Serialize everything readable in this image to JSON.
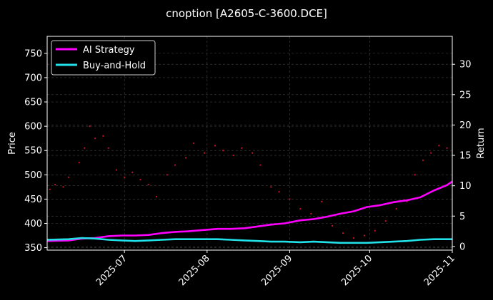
{
  "chart_data": {
    "type": "line",
    "title": "cnoption [A2605-C-3600.DCE]",
    "xlabel": "",
    "ylabel": "Price",
    "y2label": "Return",
    "x_range": [
      "2025-06-02",
      "2025-11-01"
    ],
    "x_ticks": [
      "2025-07",
      "2025-08",
      "2025-09",
      "2025-10",
      "2025-11"
    ],
    "x_tick_dates": [
      "2025-07-01",
      "2025-08-01",
      "2025-09-01",
      "2025-10-01",
      "2025-11-01"
    ],
    "ylim": [
      345,
      785
    ],
    "y_ticks": [
      350,
      400,
      450,
      500,
      550,
      600,
      650,
      700,
      750
    ],
    "y2lim": [
      -0.6,
      34.6
    ],
    "y2_ticks": [
      0,
      5,
      10,
      15,
      20,
      25,
      30
    ],
    "grid": true,
    "legend_position": "top-left",
    "colors": {
      "background": "#000000",
      "ai": "#ff00ff",
      "bh": "#22e0e8",
      "price_dots": "#cc1030",
      "grid": "#555555"
    },
    "series": [
      {
        "name": "AI Strategy",
        "x": [
          "2025-06-02",
          "2025-06-10",
          "2025-06-15",
          "2025-06-20",
          "2025-06-25",
          "2025-06-30",
          "2025-07-05",
          "2025-07-10",
          "2025-07-15",
          "2025-07-20",
          "2025-07-25",
          "2025-07-30",
          "2025-08-05",
          "2025-08-10",
          "2025-08-15",
          "2025-08-20",
          "2025-08-25",
          "2025-08-30",
          "2025-09-05",
          "2025-09-10",
          "2025-09-15",
          "2025-09-20",
          "2025-09-25",
          "2025-09-30",
          "2025-10-05",
          "2025-10-10",
          "2025-10-15",
          "2025-10-20",
          "2025-10-25",
          "2025-10-30",
          "2025-11-01"
        ],
        "values": [
          0.9,
          1.0,
          1.3,
          1.4,
          1.7,
          1.8,
          1.8,
          1.9,
          2.2,
          2.4,
          2.5,
          2.7,
          2.9,
          2.9,
          3.0,
          3.3,
          3.6,
          3.8,
          4.3,
          4.5,
          4.9,
          5.4,
          5.8,
          6.5,
          6.8,
          7.3,
          7.6,
          8.1,
          9.2,
          10.1,
          10.7
        ]
      },
      {
        "name": "Buy-and-Hold",
        "x": [
          "2025-06-02",
          "2025-06-10",
          "2025-06-15",
          "2025-06-20",
          "2025-06-25",
          "2025-06-30",
          "2025-07-05",
          "2025-07-10",
          "2025-07-15",
          "2025-07-20",
          "2025-07-25",
          "2025-07-30",
          "2025-08-05",
          "2025-08-10",
          "2025-08-15",
          "2025-08-20",
          "2025-08-25",
          "2025-08-30",
          "2025-09-05",
          "2025-09-10",
          "2025-09-15",
          "2025-09-20",
          "2025-09-25",
          "2025-09-30",
          "2025-10-05",
          "2025-10-10",
          "2025-10-15",
          "2025-10-20",
          "2025-10-25",
          "2025-10-30",
          "2025-11-01"
        ],
        "values": [
          1.1,
          1.2,
          1.4,
          1.3,
          1.1,
          1.0,
          0.9,
          1.0,
          1.1,
          1.2,
          1.2,
          1.2,
          1.2,
          1.1,
          1.0,
          0.9,
          0.8,
          0.8,
          0.7,
          0.8,
          0.7,
          0.6,
          0.6,
          0.6,
          0.7,
          0.8,
          0.9,
          1.1,
          1.2,
          1.2,
          1.2
        ]
      },
      {
        "name": "Price",
        "style": "dots",
        "x": [
          "2025-06-03",
          "2025-06-05",
          "2025-06-08",
          "2025-06-10",
          "2025-06-14",
          "2025-06-16",
          "2025-06-18",
          "2025-06-20",
          "2025-06-23",
          "2025-06-25",
          "2025-06-28",
          "2025-07-01",
          "2025-07-04",
          "2025-07-07",
          "2025-07-10",
          "2025-07-13",
          "2025-07-17",
          "2025-07-20",
          "2025-07-24",
          "2025-07-27",
          "2025-07-31",
          "2025-08-04",
          "2025-08-07",
          "2025-08-11",
          "2025-08-14",
          "2025-08-18",
          "2025-08-21",
          "2025-08-25",
          "2025-08-28",
          "2025-09-01",
          "2025-09-05",
          "2025-09-09",
          "2025-09-13",
          "2025-09-17",
          "2025-09-21",
          "2025-09-25",
          "2025-09-29",
          "2025-10-03",
          "2025-10-07",
          "2025-10-11",
          "2025-10-15",
          "2025-10-18",
          "2025-10-21",
          "2025-10-24",
          "2025-10-27",
          "2025-10-30"
        ],
        "values": [
          470,
          480,
          475,
          495,
          525,
          555,
          600,
          575,
          580,
          555,
          510,
          495,
          505,
          490,
          480,
          455,
          500,
          520,
          535,
          565,
          545,
          560,
          550,
          540,
          555,
          545,
          520,
          475,
          465,
          450,
          430,
          420,
          445,
          395,
          380,
          370,
          375,
          385,
          405,
          430,
          445,
          500,
          530,
          545,
          560,
          555
        ]
      }
    ]
  }
}
